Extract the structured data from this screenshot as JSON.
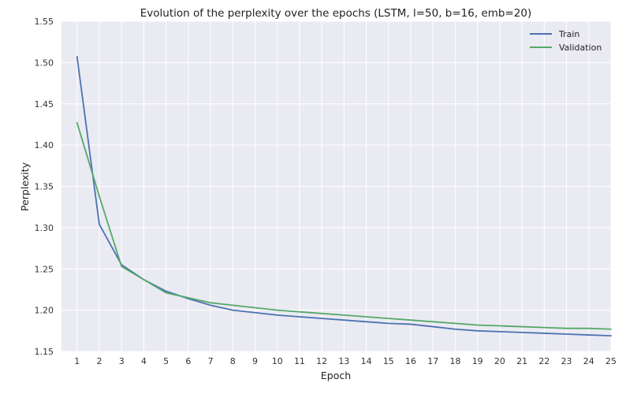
{
  "chart_data": {
    "type": "line",
    "title": "Evolution of the perplexity over the epochs (LSTM, l=50, b=16, emb=20)",
    "xlabel": "Epoch",
    "ylabel": "Perplexity",
    "x": [
      1,
      2,
      3,
      4,
      5,
      6,
      7,
      8,
      9,
      10,
      11,
      12,
      13,
      14,
      15,
      16,
      17,
      18,
      19,
      20,
      21,
      22,
      23,
      24,
      25
    ],
    "xlim": [
      0.3,
      25
    ],
    "ylim": [
      1.15,
      1.55
    ],
    "yticks": [
      "1.15",
      "1.20",
      "1.25",
      "1.30",
      "1.35",
      "1.40",
      "1.45",
      "1.50",
      "1.55"
    ],
    "xticks": [
      "1",
      "2",
      "3",
      "4",
      "5",
      "6",
      "7",
      "8",
      "9",
      "10",
      "11",
      "12",
      "13",
      "14",
      "15",
      "16",
      "17",
      "18",
      "19",
      "20",
      "21",
      "22",
      "23",
      "24",
      "25"
    ],
    "grid": true,
    "legend_position": "top-right",
    "background": "#EAEAF2",
    "series": [
      {
        "name": "Train",
        "color": "#4C72B0",
        "values": [
          1.507,
          1.304,
          1.255,
          1.237,
          1.223,
          1.214,
          1.206,
          1.2,
          1.197,
          1.194,
          1.192,
          1.19,
          1.188,
          1.186,
          1.184,
          1.183,
          1.18,
          1.177,
          1.175,
          1.174,
          1.173,
          1.172,
          1.171,
          1.17,
          1.169
        ]
      },
      {
        "name": "Validation",
        "color": "#55A868",
        "values": [
          1.427,
          1.338,
          1.253,
          1.237,
          1.221,
          1.215,
          1.209,
          1.206,
          1.203,
          1.2,
          1.198,
          1.196,
          1.194,
          1.192,
          1.19,
          1.188,
          1.186,
          1.184,
          1.182,
          1.181,
          1.18,
          1.179,
          1.178,
          1.178,
          1.177
        ]
      }
    ]
  }
}
